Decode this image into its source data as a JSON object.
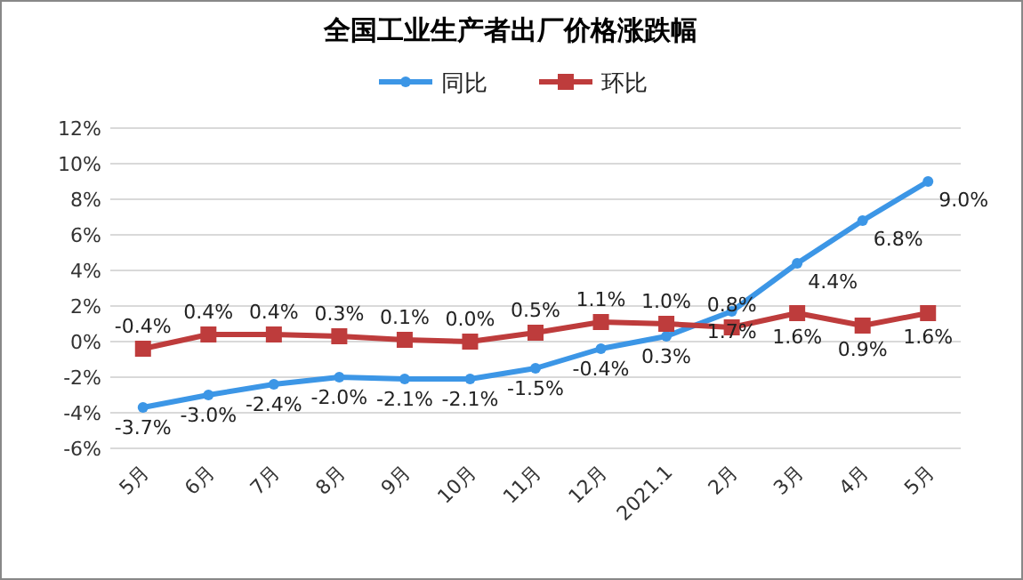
{
  "chart_data": {
    "type": "line",
    "title": "全国工业生产者出厂价格涨跌幅",
    "categories": [
      "5月",
      "6月",
      "7月",
      "8月",
      "9月",
      "10月",
      "11月",
      "12月",
      "2021.1",
      "2月",
      "3月",
      "4月",
      "5月"
    ],
    "series": [
      {
        "name": "同比",
        "color": "#3c96e6",
        "marker": "circle",
        "values": [
          -3.7,
          -3.0,
          -2.4,
          -2.0,
          -2.1,
          -2.1,
          -1.5,
          -0.4,
          0.3,
          1.7,
          4.4,
          6.8,
          9.0
        ],
        "value_labels": [
          "-3.7%",
          "-3.0%",
          "-2.4%",
          "-2.0%",
          "-2.1%",
          "-2.1%",
          "-1.5%",
          "-0.4%",
          "0.3%",
          "1.7%",
          "4.4%",
          "6.8%",
          "9.0%"
        ]
      },
      {
        "name": "环比",
        "color": "#be3c3c",
        "marker": "square",
        "values": [
          -0.4,
          0.4,
          0.4,
          0.3,
          0.1,
          0.0,
          0.5,
          1.1,
          1.0,
          0.8,
          1.6,
          0.9,
          1.6
        ],
        "value_labels": [
          "-0.4%",
          "0.4%",
          "0.4%",
          "0.3%",
          "0.1%",
          "0.0%",
          "0.5%",
          "1.1%",
          "1.0%",
          "0.8%",
          "1.6%",
          "0.9%",
          "1.6%"
        ]
      }
    ],
    "ylim": [
      -6,
      12
    ],
    "yticks": [
      {
        "value": -6,
        "label": "-6%"
      },
      {
        "value": -4,
        "label": "-4%"
      },
      {
        "value": -2,
        "label": "-2%"
      },
      {
        "value": 0,
        "label": "0%"
      },
      {
        "value": 2,
        "label": "2%"
      },
      {
        "value": 4,
        "label": "4%"
      },
      {
        "value": 6,
        "label": "6%"
      },
      {
        "value": 8,
        "label": "8%"
      },
      {
        "value": 10,
        "label": "10%"
      },
      {
        "value": 12,
        "label": "12%"
      }
    ],
    "grid": "y",
    "legend": "top"
  }
}
